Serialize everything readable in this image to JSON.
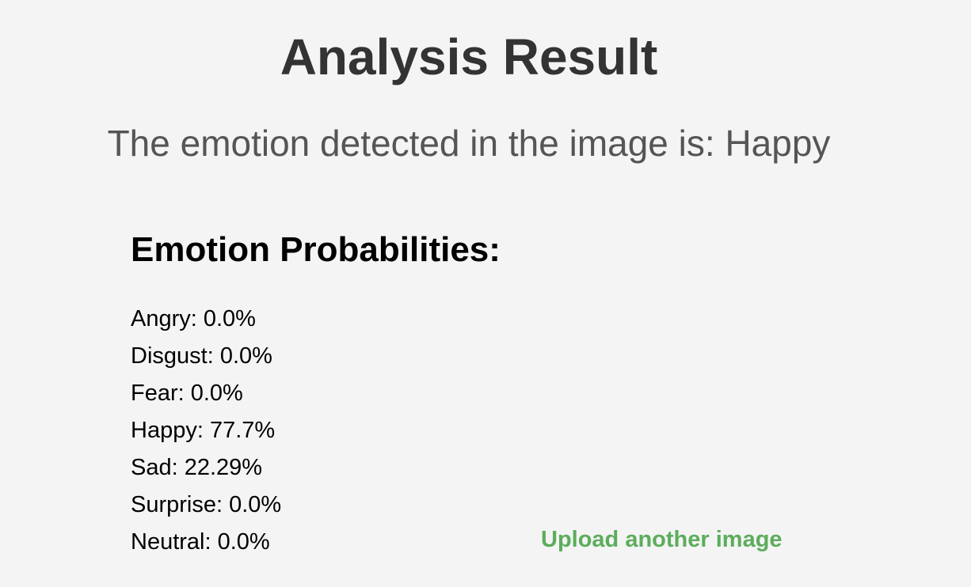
{
  "page": {
    "title": "Analysis Result",
    "result_text": "The emotion detected in the image is: Happy"
  },
  "probabilities": {
    "heading": "Emotion Probabilities:",
    "items": [
      {
        "label": "Angry: 0.0%",
        "emotion": "Angry",
        "value": 0.0
      },
      {
        "label": "Disgust: 0.0%",
        "emotion": "Disgust",
        "value": 0.0
      },
      {
        "label": "Fear: 0.0%",
        "emotion": "Fear",
        "value": 0.0
      },
      {
        "label": "Happy: 77.7%",
        "emotion": "Happy",
        "value": 77.7
      },
      {
        "label": "Sad: 22.29%",
        "emotion": "Sad",
        "value": 22.29
      },
      {
        "label": "Surprise: 0.0%",
        "emotion": "Surprise",
        "value": 0.0
      },
      {
        "label": "Neutral: 0.0%",
        "emotion": "Neutral",
        "value": 0.0
      }
    ]
  },
  "actions": {
    "upload_label": "Upload another image",
    "link_color": "#5cad5c"
  }
}
